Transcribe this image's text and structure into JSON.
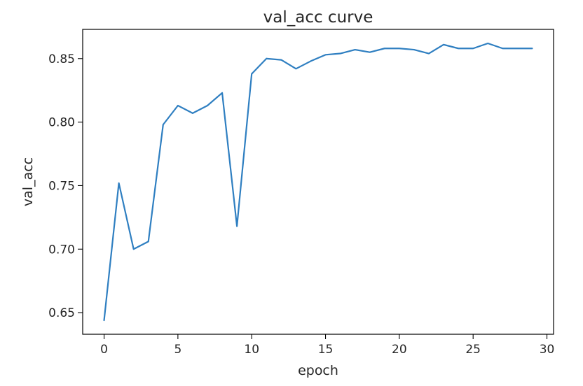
{
  "chart_data": {
    "type": "line",
    "title": "val_acc curve",
    "xlabel": "epoch",
    "ylabel": "val_acc",
    "xlim": [
      -1.45,
      30.45
    ],
    "ylim": [
      0.633,
      0.873
    ],
    "x_ticks": [
      0,
      5,
      10,
      15,
      20,
      25,
      30
    ],
    "x_tick_labels": [
      "0",
      "5",
      "10",
      "15",
      "20",
      "25",
      "30"
    ],
    "y_ticks": [
      0.65,
      0.7,
      0.75,
      0.8,
      0.85
    ],
    "y_tick_labels": [
      "0.65",
      "0.70",
      "0.75",
      "0.80",
      "0.85"
    ],
    "grid": false,
    "legend": "none",
    "series": [
      {
        "color": "#2f7fc1",
        "x": [
          0,
          1,
          2,
          3,
          4,
          5,
          6,
          7,
          8,
          9,
          10,
          11,
          12,
          13,
          14,
          15,
          16,
          17,
          18,
          19,
          20,
          21,
          22,
          23,
          24,
          25,
          26,
          27,
          28,
          29
        ],
        "values": [
          0.644,
          0.752,
          0.7,
          0.706,
          0.798,
          0.813,
          0.807,
          0.813,
          0.823,
          0.718,
          0.838,
          0.85,
          0.849,
          0.842,
          0.848,
          0.853,
          0.854,
          0.857,
          0.855,
          0.858,
          0.858,
          0.857,
          0.854,
          0.861,
          0.858,
          0.858,
          0.862,
          0.858,
          0.858,
          0.858
        ]
      }
    ]
  }
}
